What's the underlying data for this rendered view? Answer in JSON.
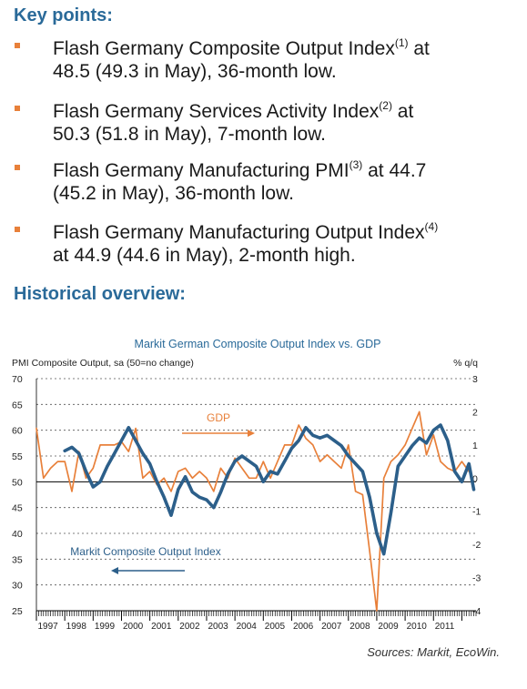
{
  "key_points": {
    "heading": "Key points:",
    "items": [
      {
        "line1": "Flash Germany Composite Output Index",
        "sup": "(1)",
        "line1_tail": " at",
        "line2": "48.5 (49.3 in May), 36-month low."
      },
      {
        "line1": "Flash Germany Services Activity Index",
        "sup": "(2)",
        "line1_tail": " at",
        "line2": "50.3 (51.8 in May), 7-month low."
      },
      {
        "line1": "Flash Germany Manufacturing PMI",
        "sup": "(3)",
        "line1_tail": " at 44.7",
        "line2": "(45.2 in May), 36-month low."
      },
      {
        "line1": "Flash Germany Manufacturing Output Index",
        "sup": "(4)",
        "line1_tail": "",
        "line2": "at 44.9 (44.6 in May), 2-month high."
      }
    ]
  },
  "historical": {
    "heading": "Historical overview:"
  },
  "source": "Sources: Markit, EcoWin.",
  "colors": {
    "pmi": "#2c5f8a",
    "gdp": "#e8803a",
    "heading": "#2a6a99",
    "title": "#2a6a99"
  },
  "chart_data": {
    "type": "line",
    "title": "Markit German Composite Output Index vs. GDP",
    "ylabel_left": "PMI Composite Output, sa (50=no change)",
    "ylabel_right": "% q/q",
    "ylim_left": [
      25,
      70
    ],
    "yticks_left": [
      "70",
      "65",
      "60",
      "55",
      "50",
      "45",
      "40",
      "35",
      "30",
      "25"
    ],
    "ylim_right": [
      -4,
      3
    ],
    "yticks_right": [
      "3",
      "2",
      "1",
      "0",
      "-1",
      "-2",
      "-3",
      "-4"
    ],
    "xlim": [
      1997,
      2012.5
    ],
    "x_tick_labels": [
      "1997",
      "1998",
      "1999",
      "2000",
      "2001",
      "2002",
      "2003",
      "2004",
      "2005",
      "2006",
      "2007",
      "2008",
      "2009",
      "2010",
      "2011"
    ],
    "grid": "horizontal dashed",
    "series": [
      {
        "name": "Markit Composite Output Index",
        "axis": "left",
        "x": [
          1998.0,
          1998.25,
          1998.5,
          1998.75,
          1999.0,
          1999.25,
          1999.5,
          1999.75,
          2000.0,
          2000.25,
          2000.5,
          2000.75,
          2001.0,
          2001.25,
          2001.5,
          2001.75,
          2002.0,
          2002.25,
          2002.5,
          2002.75,
          2003.0,
          2003.25,
          2003.5,
          2003.75,
          2004.0,
          2004.25,
          2004.5,
          2004.75,
          2005.0,
          2005.25,
          2005.5,
          2005.75,
          2006.0,
          2006.25,
          2006.5,
          2006.75,
          2007.0,
          2007.25,
          2007.5,
          2007.75,
          2008.0,
          2008.25,
          2008.5,
          2008.75,
          2009.0,
          2009.25,
          2009.5,
          2009.75,
          2010.0,
          2010.25,
          2010.5,
          2010.75,
          2011.0,
          2011.25,
          2011.5,
          2011.75,
          2012.0,
          2012.25,
          2012.42
        ],
        "y": [
          56.0,
          56.7,
          55.5,
          52.0,
          49.0,
          50.0,
          53.0,
          55.5,
          58.0,
          60.5,
          58.0,
          55.5,
          53.5,
          50.0,
          47.0,
          43.5,
          48.5,
          51.0,
          48.0,
          47.0,
          46.5,
          45.0,
          48.0,
          51.5,
          54.0,
          55.0,
          54.0,
          53.0,
          50.0,
          52.0,
          51.5,
          54.0,
          56.5,
          58.0,
          60.5,
          59.0,
          58.5,
          59.0,
          58.0,
          57.0,
          55.0,
          53.5,
          52.0,
          47.0,
          40.0,
          36.0,
          44.0,
          53.0,
          55.0,
          57.0,
          58.5,
          57.5,
          60.0,
          61.0,
          58.0,
          52.0,
          50.0,
          53.5,
          48.5
        ]
      },
      {
        "name": "GDP",
        "axis": "right",
        "x": [
          1997.0,
          1997.25,
          1997.5,
          1997.75,
          1998.0,
          1998.25,
          1998.5,
          1998.75,
          1999.0,
          1999.25,
          1999.5,
          1999.75,
          2000.0,
          2000.25,
          2000.5,
          2000.75,
          2001.0,
          2001.25,
          2001.5,
          2001.75,
          2002.0,
          2002.25,
          2002.5,
          2002.75,
          2003.0,
          2003.25,
          2003.5,
          2003.75,
          2004.0,
          2004.25,
          2004.5,
          2004.75,
          2005.0,
          2005.25,
          2005.5,
          2005.75,
          2006.0,
          2006.25,
          2006.5,
          2006.75,
          2007.0,
          2007.25,
          2007.5,
          2007.75,
          2008.0,
          2008.25,
          2008.5,
          2008.75,
          2009.0,
          2009.25,
          2009.5,
          2009.75,
          2010.0,
          2010.25,
          2010.5,
          2010.75,
          2011.0,
          2011.25,
          2011.5,
          2011.75,
          2012.0,
          2012.25
        ],
        "y": [
          1.5,
          0.0,
          0.3,
          0.5,
          0.5,
          -0.4,
          0.8,
          0.0,
          0.3,
          1.0,
          1.0,
          1.0,
          1.1,
          0.8,
          1.5,
          0.0,
          0.2,
          -0.2,
          0.0,
          -0.4,
          0.2,
          0.3,
          0.0,
          0.2,
          0.0,
          -0.4,
          0.3,
          0.0,
          0.6,
          0.3,
          0.0,
          0.0,
          0.5,
          0.0,
          0.5,
          1.0,
          1.0,
          1.6,
          1.2,
          1.0,
          0.5,
          0.7,
          0.5,
          0.3,
          1.0,
          -0.4,
          -0.5,
          -2.2,
          -4.0,
          0.0,
          0.5,
          0.7,
          1.0,
          1.5,
          2.0,
          0.7,
          1.3,
          0.5,
          0.3,
          0.2,
          0.5,
          0.2
        ]
      }
    ],
    "annotations": [
      {
        "text": "GDP",
        "series": "GDP"
      },
      {
        "text": "Markit Composite Output Index",
        "series": "Markit Composite Output Index"
      }
    ]
  }
}
